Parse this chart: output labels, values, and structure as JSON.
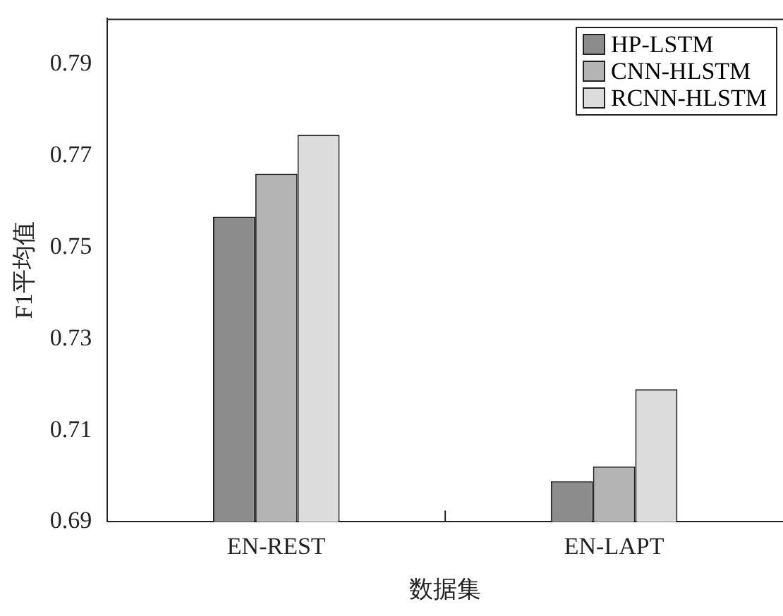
{
  "chart_data": {
    "type": "bar",
    "xlabel": "数据集",
    "ylabel": "F1平均值",
    "categories": [
      "EN-REST",
      "EN-LAPT"
    ],
    "series": [
      {
        "name": "HP-LSTM",
        "color": "#8c8c8c",
        "values": [
          0.7567,
          0.6989
        ]
      },
      {
        "name": "CNN-HLSTM",
        "color": "#b4b4b4",
        "values": [
          0.7661,
          0.7021
        ]
      },
      {
        "name": "RCNN-HLSTM",
        "color": "#dcdcdc",
        "values": [
          0.7746,
          0.719
        ]
      }
    ],
    "ylim": [
      0.69,
      0.8
    ],
    "yticks": [
      0.69,
      0.71,
      0.73,
      0.75,
      0.77,
      0.79
    ],
    "grid": false,
    "legend": "top right"
  }
}
